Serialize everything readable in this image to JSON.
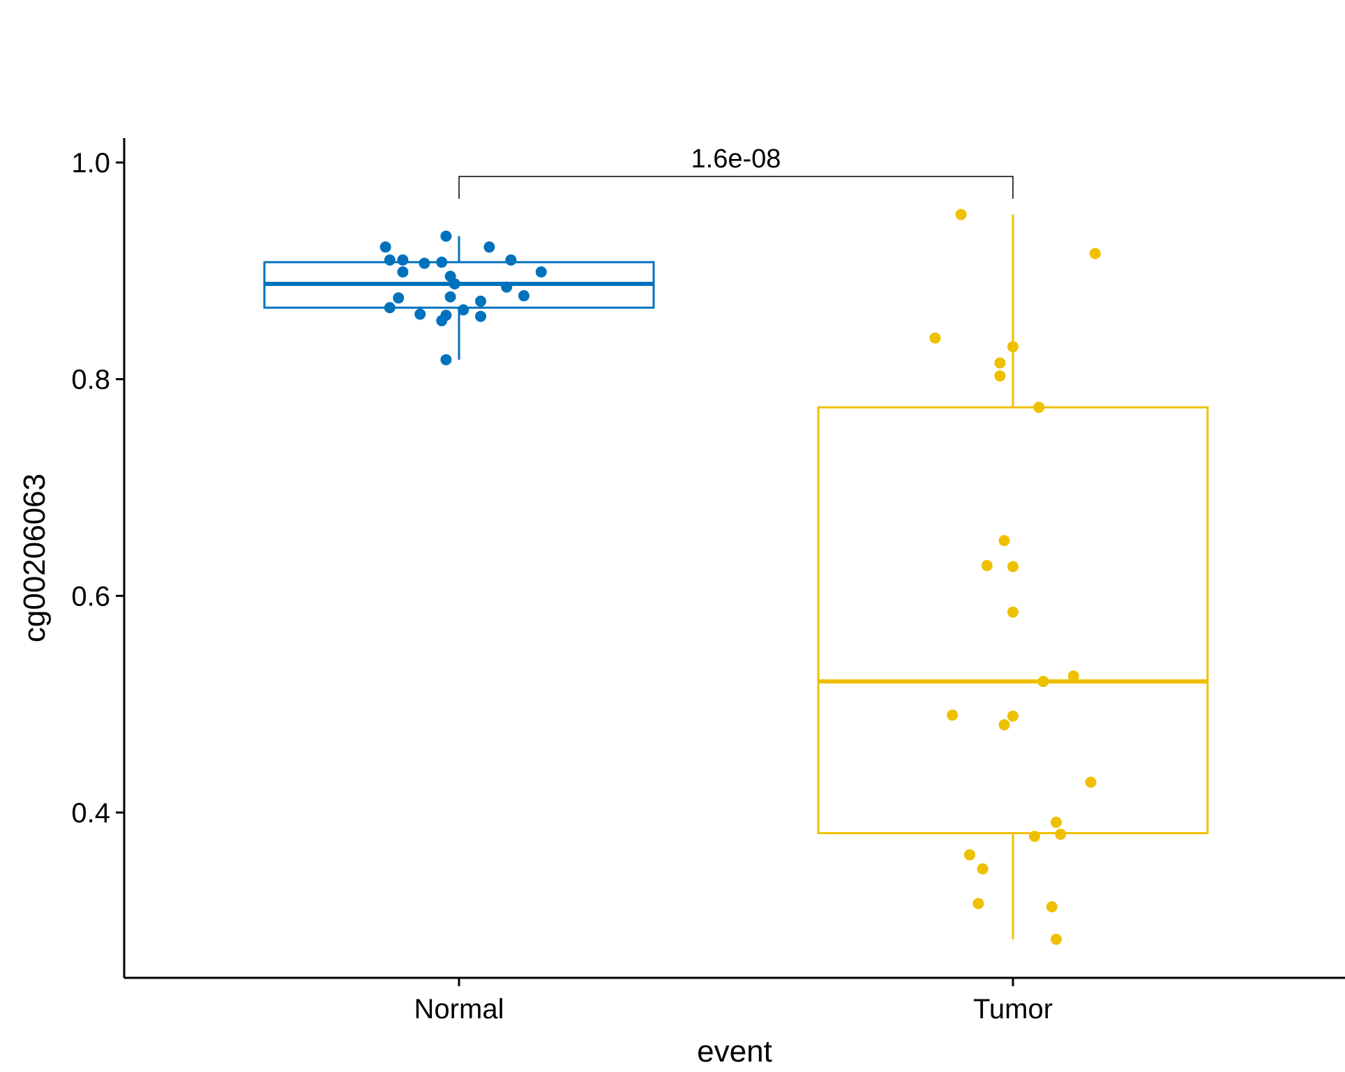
{
  "chart_data": {
    "type": "box",
    "xlabel": "event",
    "ylabel": "cg00206063",
    "ylim": [
      0.25,
      1.02
    ],
    "yticks": [
      0.4,
      0.6,
      0.8,
      1.0
    ],
    "ytick_labels": [
      "0.4",
      "0.6",
      "0.8",
      "1.0"
    ],
    "categories": [
      "Normal",
      "Tumor"
    ],
    "grid": false,
    "legend": "none",
    "comparison": {
      "from": "Normal",
      "to": "Tumor",
      "label": "1.6e-08"
    },
    "series": [
      {
        "name": "Normal",
        "color": "#0072BD",
        "box": {
          "q1": 0.866,
          "median": 0.888,
          "q3": 0.908,
          "whisker_low": 0.818,
          "whisker_high": 0.932
        },
        "points": [
          [
            -0.17,
            0.922
          ],
          [
            -0.16,
            0.91
          ],
          [
            -0.13,
            0.91
          ],
          [
            -0.13,
            0.899
          ],
          [
            -0.08,
            0.907
          ],
          [
            -0.04,
            0.908
          ],
          [
            -0.03,
            0.932
          ],
          [
            -0.02,
            0.895
          ],
          [
            -0.01,
            0.888
          ],
          [
            -0.02,
            0.876
          ],
          [
            0.07,
            0.922
          ],
          [
            0.12,
            0.91
          ],
          [
            0.19,
            0.899
          ],
          [
            0.11,
            0.885
          ],
          [
            0.15,
            0.877
          ],
          [
            0.05,
            0.872
          ],
          [
            0.01,
            0.864
          ],
          [
            -0.03,
            0.859
          ],
          [
            0.05,
            0.858
          ],
          [
            -0.09,
            0.86
          ],
          [
            -0.04,
            0.854
          ],
          [
            -0.16,
            0.866
          ],
          [
            -0.14,
            0.875
          ],
          [
            -0.03,
            0.818
          ]
        ]
      },
      {
        "name": "Tumor",
        "color": "#EFC000",
        "box": {
          "q1": 0.381,
          "median": 0.521,
          "q3": 0.774,
          "whisker_low": 0.283,
          "whisker_high": 0.952
        },
        "points": [
          [
            -0.12,
            0.952
          ],
          [
            0.19,
            0.916
          ],
          [
            -0.18,
            0.838
          ],
          [
            0.0,
            0.83
          ],
          [
            -0.03,
            0.815
          ],
          [
            -0.03,
            0.803
          ],
          [
            0.06,
            0.774
          ],
          [
            -0.02,
            0.651
          ],
          [
            -0.06,
            0.628
          ],
          [
            0.0,
            0.627
          ],
          [
            0.0,
            0.585
          ],
          [
            0.14,
            0.526
          ],
          [
            0.07,
            0.521
          ],
          [
            -0.14,
            0.49
          ],
          [
            0.0,
            0.489
          ],
          [
            -0.02,
            0.481
          ],
          [
            0.18,
            0.428
          ],
          [
            0.1,
            0.391
          ],
          [
            0.11,
            0.38
          ],
          [
            0.05,
            0.378
          ],
          [
            -0.1,
            0.361
          ],
          [
            -0.07,
            0.348
          ],
          [
            -0.08,
            0.316
          ],
          [
            0.09,
            0.313
          ],
          [
            0.1,
            0.283
          ]
        ]
      }
    ]
  }
}
